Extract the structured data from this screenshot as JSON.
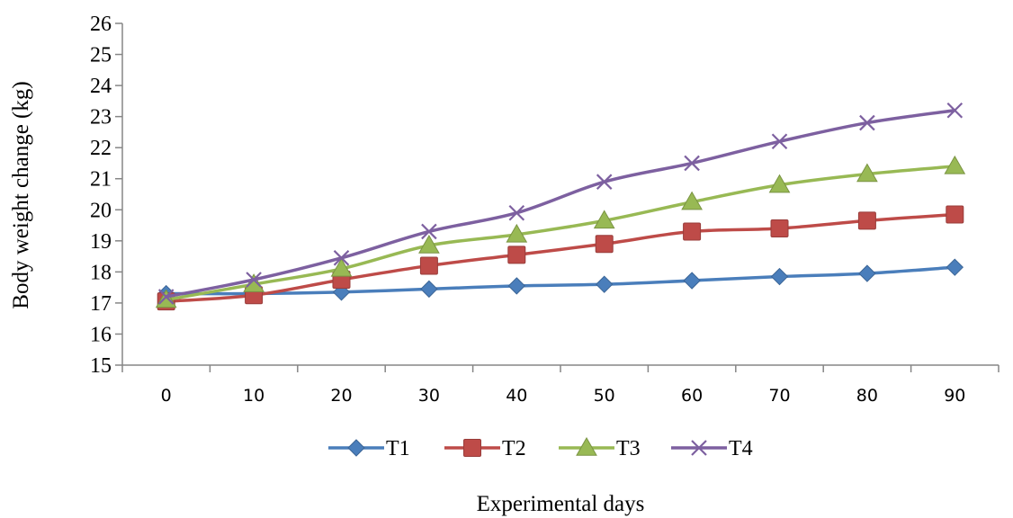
{
  "chart_data": {
    "type": "line",
    "xlabel": "Experimental days",
    "ylabel": "Body weight change (kg)",
    "x": [
      0,
      10,
      20,
      30,
      40,
      50,
      60,
      70,
      80,
      90
    ],
    "ylim": [
      15,
      26
    ],
    "yticks": [
      15,
      16,
      17,
      18,
      19,
      20,
      21,
      22,
      23,
      24,
      25,
      26
    ],
    "grid": false,
    "legend_position": "bottom",
    "series": [
      {
        "name": "T1",
        "color": "#4A7EBB",
        "marker": "diamond",
        "values": [
          17.3,
          17.3,
          17.35,
          17.45,
          17.55,
          17.6,
          17.72,
          17.85,
          17.95,
          18.15
        ]
      },
      {
        "name": "T2",
        "color": "#BE4B48",
        "marker": "square",
        "values": [
          17.05,
          17.25,
          17.75,
          18.2,
          18.55,
          18.9,
          19.3,
          19.4,
          19.65,
          19.85
        ]
      },
      {
        "name": "T3",
        "color": "#98B954",
        "marker": "triangle",
        "values": [
          17.1,
          17.6,
          18.1,
          18.85,
          19.2,
          19.65,
          20.25,
          20.8,
          21.15,
          21.4
        ]
      },
      {
        "name": "T4",
        "color": "#7D60A0",
        "marker": "x",
        "values": [
          17.2,
          17.75,
          18.45,
          19.3,
          19.9,
          20.9,
          21.5,
          22.2,
          22.8,
          23.2
        ]
      }
    ]
  }
}
